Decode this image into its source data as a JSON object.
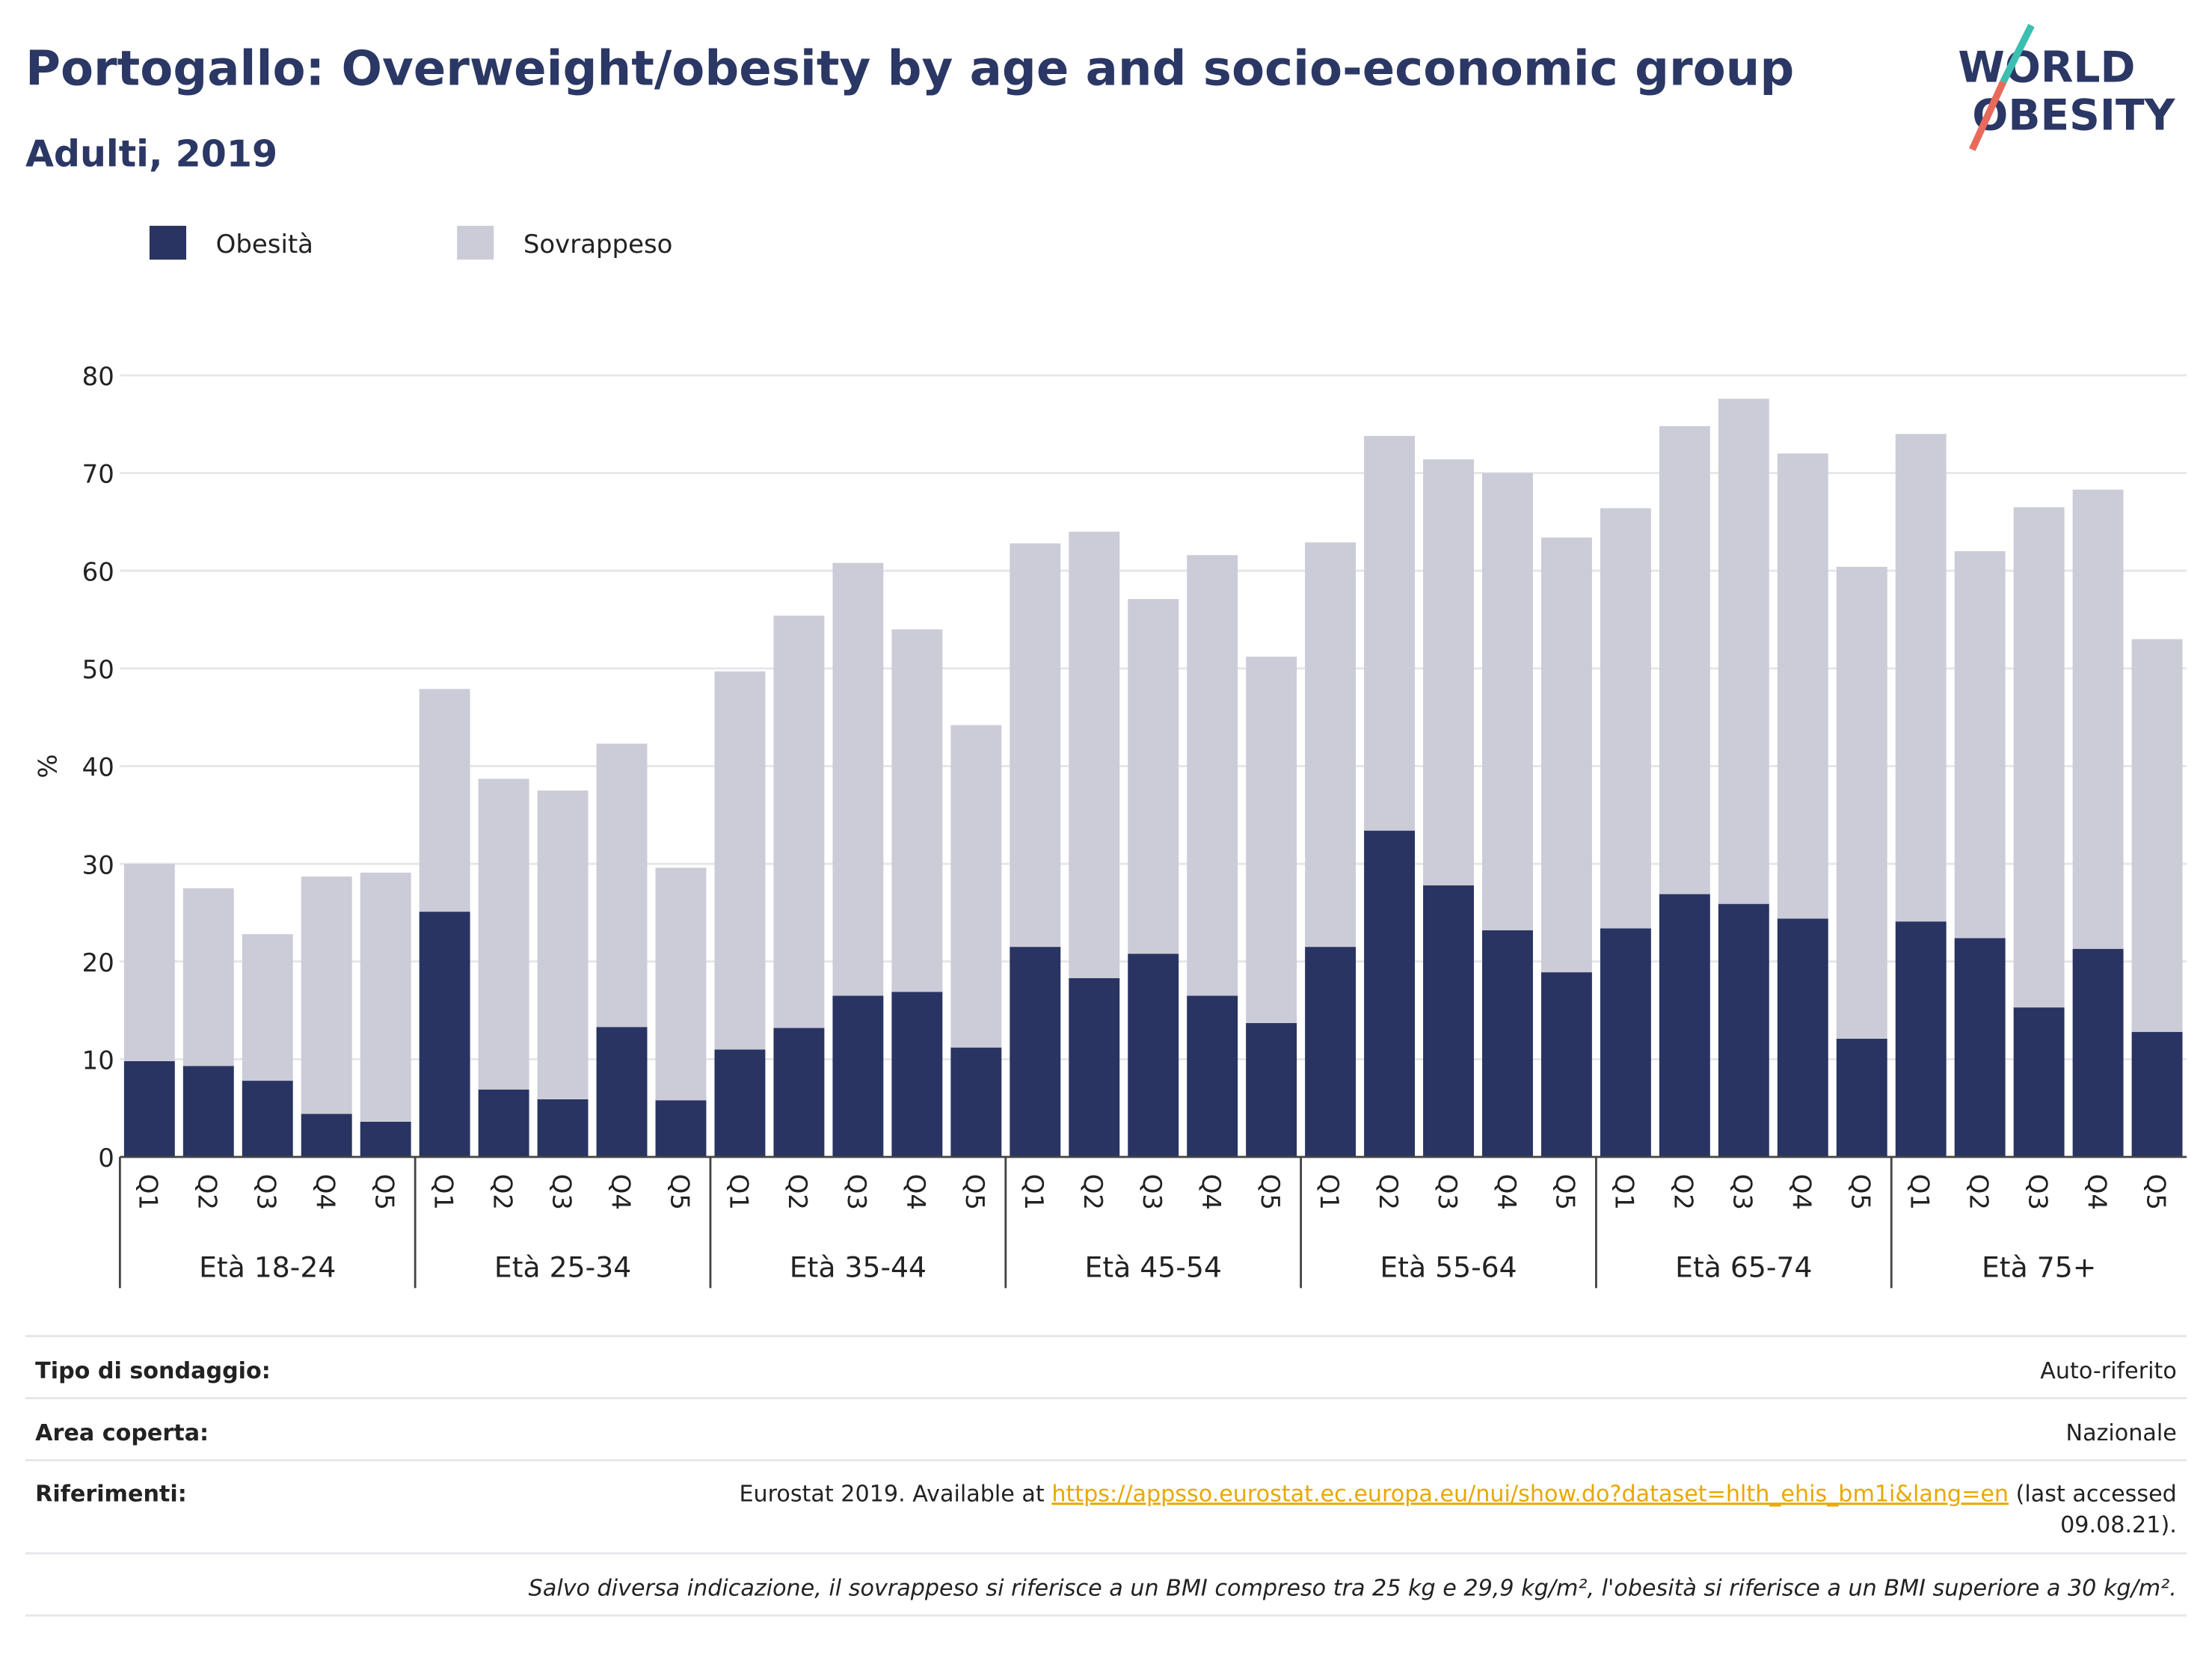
{
  "chart_data": {
    "type": "stacked_bar",
    "title": "Portogallo: Overweight/obesity by age and socio-economic group",
    "subtitle": "Adulti, 2019",
    "ylabel": "%",
    "categories": [
      "Q1",
      "Q2",
      "Q3",
      "Q4",
      "Q5",
      "Q1",
      "Q2",
      "Q3",
      "Q4",
      "Q5",
      "Q1",
      "Q2",
      "Q3",
      "Q4",
      "Q5",
      "Q1",
      "Q2",
      "Q3",
      "Q4",
      "Q5",
      "Q1",
      "Q2",
      "Q3",
      "Q4",
      "Q5",
      "Q1",
      "Q2",
      "Q3",
      "Q4",
      "Q5",
      "Q1",
      "Q2",
      "Q3",
      "Q4",
      "Q5"
    ],
    "groups": [
      "Età 18-24",
      "Età 25-34",
      "Età 35-44",
      "Età 45-54",
      "Età 55-64",
      "Età 65-74",
      "Età 75+"
    ],
    "series": [
      {
        "name": "Obesità",
        "color": "#293462",
        "values": [
          9.8,
          9.3,
          7.8,
          4.4,
          3.6,
          25.1,
          6.9,
          5.9,
          13.3,
          5.8,
          11.0,
          13.2,
          16.5,
          16.9,
          11.2,
          21.5,
          18.3,
          20.8,
          16.5,
          13.7,
          21.5,
          33.4,
          27.8,
          23.2,
          18.9,
          23.4,
          26.9,
          25.9,
          24.4,
          12.1,
          24.1,
          22.4,
          15.3,
          21.3,
          12.8
        ]
      },
      {
        "name": "Sovrappeso",
        "color": "#cbccd8",
        "values": [
          20.2,
          18.2,
          15.0,
          24.3,
          25.5,
          22.8,
          31.8,
          31.6,
          29.0,
          23.8,
          38.7,
          42.2,
          44.3,
          37.1,
          33.0,
          41.3,
          45.7,
          36.3,
          45.1,
          37.5,
          41.4,
          40.4,
          43.6,
          46.8,
          44.5,
          43.0,
          47.9,
          51.7,
          47.6,
          48.3,
          49.9,
          39.6,
          51.2,
          47.0,
          40.2
        ]
      }
    ],
    "ylim": [
      0,
      80
    ],
    "yticks": [
      0,
      10,
      20,
      30,
      40,
      50,
      60,
      70,
      80
    ],
    "grid": true
  },
  "logo": [
    "WORLD",
    "OBESITY"
  ],
  "footer": {
    "rows": [
      {
        "label": "Tipo di sondaggio:",
        "value": "Auto-riferito"
      },
      {
        "label": "Area coperta:",
        "value": "Nazionale"
      }
    ],
    "references": {
      "label": "Riferimenti:",
      "text_before": "Eurostat 2019. Available at ",
      "link": "https://appsso.eurostat.ec.europa.eu/nui/show.do?dataset=hlth_ehis_bm1i&lang=en",
      "text_after": [
        " (last accessed",
        "09.08.21)."
      ]
    },
    "note": "Salvo diversa indicazione, il sovrappeso si riferisce a un BMI compreso tra 25 kg e 29,9 kg/m², l'obesità si riferisce a un BMI superiore a 30 kg/m²."
  }
}
